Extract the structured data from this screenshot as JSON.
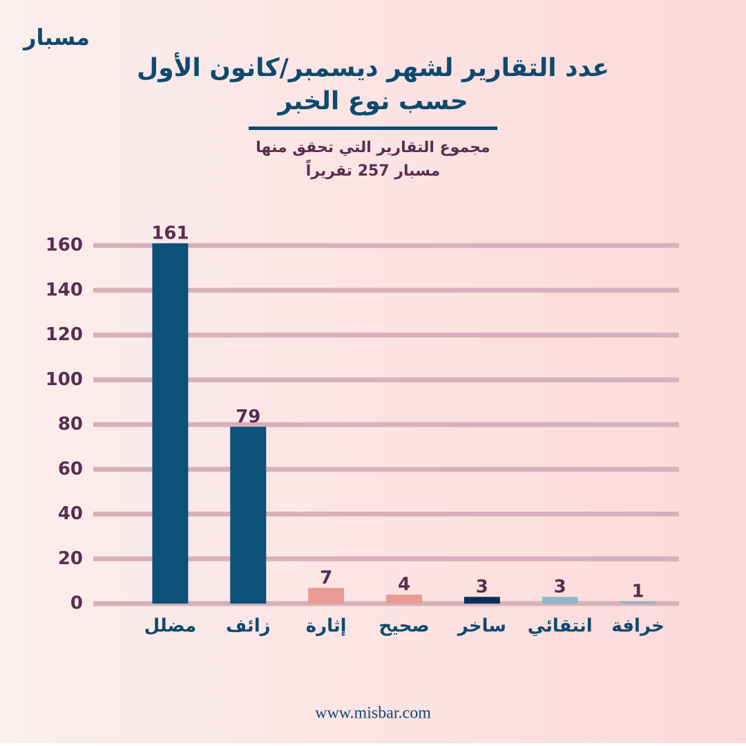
{
  "brand": "مسبار",
  "footer": "www.misbar.com",
  "chart_data": {
    "type": "bar",
    "title": [
      "عدد التقارير لشهر ديسمبر/كانون الأول",
      "حسب نوع الخبر"
    ],
    "subtitle": [
      "مجموع التقارير التي تحقق منها",
      "مسبار 257 تقريراً"
    ],
    "categories": [
      "مضلل",
      "زائف",
      "إثارة",
      "صحيح",
      "ساخر",
      "انتقائي",
      "خرافة"
    ],
    "values": [
      161,
      79,
      7,
      4,
      3,
      3,
      1
    ],
    "colors": [
      "#0d5079",
      "#0d5079",
      "#e89a94",
      "#e89a94",
      "#0b2f5a",
      "#8fb8c8",
      "#8fb8c8"
    ],
    "ylim": [
      0,
      165
    ],
    "yticks": [
      0,
      20,
      40,
      60,
      80,
      100,
      120,
      140,
      160
    ],
    "grid": true
  }
}
